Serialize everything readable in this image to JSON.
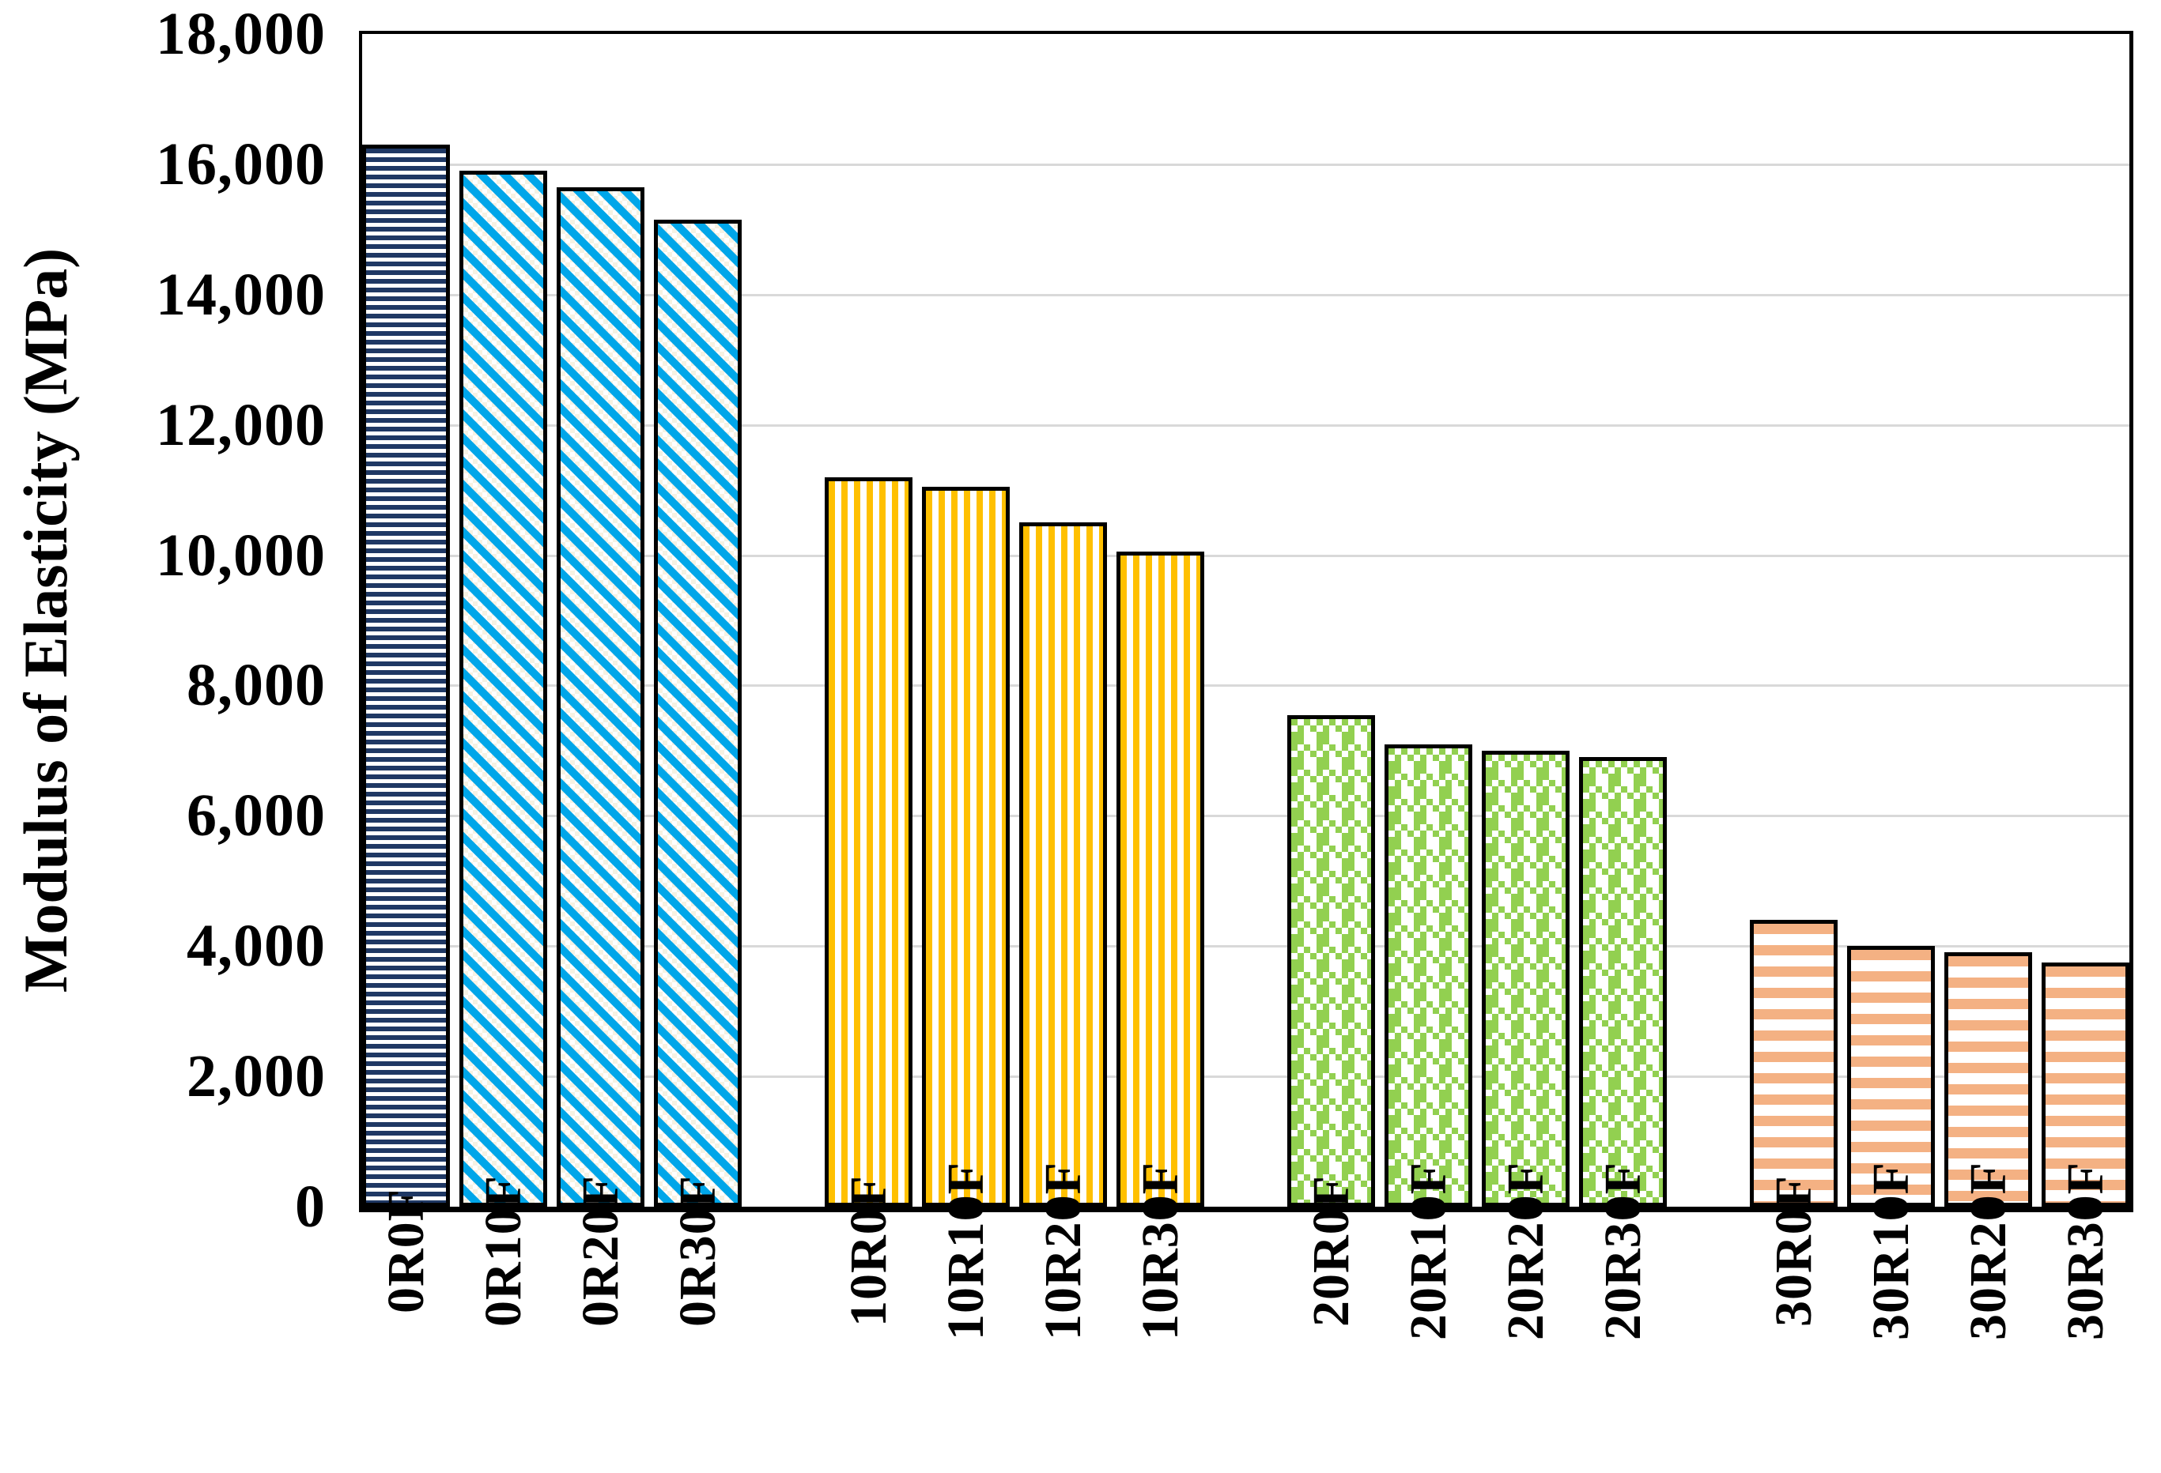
{
  "page": {
    "background": "#FFFFFF"
  },
  "chart_data": {
    "type": "bar",
    "title": "",
    "xlabel": "",
    "ylabel": "Modulus of Elasticity (MPa)",
    "ylim": [
      0,
      18000
    ],
    "ytick_step": 2000,
    "ytick_labels": [
      "0",
      "2,000",
      "4,000",
      "6,000",
      "8,000",
      "10,000",
      "12,000",
      "14,000",
      "16,000",
      "18,000"
    ],
    "grid": "horizontal",
    "gridline_color": "#D9D9D9",
    "legend_position": "none",
    "group_size": 4,
    "categories": [
      "0R0F",
      "0R10F",
      "0R20F",
      "0R30F",
      "10R0F",
      "10R10F",
      "10R20F",
      "10R30F",
      "20R0F",
      "20R10F",
      "20R20F",
      "20R30F",
      "30R0F",
      "30R10F",
      "30R20F",
      "30R30F"
    ],
    "values": [
      16300,
      15900,
      15650,
      15150,
      11200,
      11050,
      10500,
      10050,
      7550,
      7100,
      7000,
      6900,
      4400,
      4000,
      3900,
      3750
    ],
    "bar_patterns": [
      "navy-hlines",
      "cyan-diag",
      "cyan-diag",
      "cyan-diag",
      "yellow-vstripes",
      "yellow-vstripes",
      "yellow-vstripes",
      "yellow-vstripes",
      "green-checker",
      "green-checker",
      "green-checker",
      "green-checker",
      "orange-hlines",
      "orange-hlines",
      "orange-hlines",
      "orange-hlines"
    ]
  },
  "patterns": {
    "navy-hlines": {
      "style": "horizontal-lines",
      "color": "#1F3864"
    },
    "cyan-diag": {
      "style": "diagonal-stripes",
      "color": "#00A6E9",
      "speckle": "#F6F2E3"
    },
    "yellow-vstripes": {
      "style": "vertical-stripes",
      "color": "#FFC000"
    },
    "green-checker": {
      "style": "checker-weave",
      "color": "#92D050"
    },
    "orange-hlines": {
      "style": "horizontal-lines-wide",
      "color": "#F4B183"
    }
  },
  "axis_color": "#000000"
}
